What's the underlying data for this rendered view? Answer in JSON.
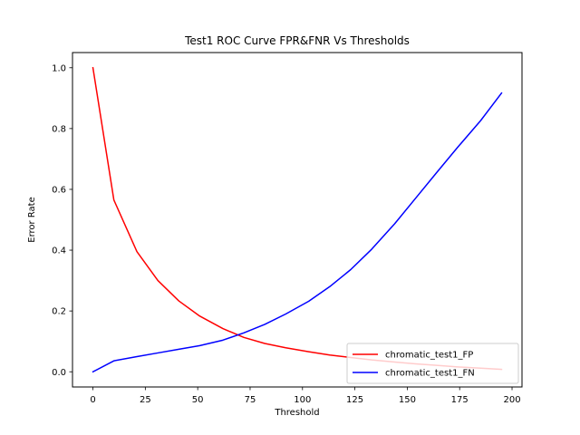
{
  "chart_data": {
    "type": "line",
    "title": "Test1 ROC Curve FPR&FNR Vs Thresholds",
    "xlabel": "Threshold",
    "ylabel": "Error Rate",
    "xlim": [
      -9.75,
      204.75
    ],
    "ylim": [
      -0.05,
      1.05
    ],
    "xticks": [
      0,
      25,
      50,
      75,
      100,
      125,
      150,
      175,
      200
    ],
    "yticks": [
      0.0,
      0.2,
      0.4,
      0.6,
      0.8,
      1.0
    ],
    "grid": false,
    "legend_position": "bottom-right",
    "x": [
      0,
      10,
      21,
      31,
      41,
      51,
      62,
      72,
      82,
      92,
      103,
      113,
      123,
      133,
      144,
      154,
      164,
      174,
      185,
      195
    ],
    "series": [
      {
        "name": "chromatic_test1_FP",
        "color": "#ff0000",
        "values": [
          1.0,
          0.565,
          0.395,
          0.3,
          0.233,
          0.183,
          0.142,
          0.113,
          0.093,
          0.079,
          0.066,
          0.055,
          0.047,
          0.039,
          0.032,
          0.026,
          0.021,
          0.016,
          0.012,
          0.008
        ]
      },
      {
        "name": "chromatic_test1_FN",
        "color": "#0000ff",
        "values": [
          0.0,
          0.036,
          0.05,
          0.062,
          0.074,
          0.086,
          0.104,
          0.128,
          0.156,
          0.19,
          0.232,
          0.28,
          0.336,
          0.403,
          0.487,
          0.571,
          0.655,
          0.738,
          0.826,
          0.917
        ]
      }
    ]
  }
}
